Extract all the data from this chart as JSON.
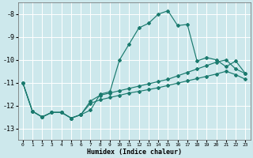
{
  "xlabel": "Humidex (Indice chaleur)",
  "bg_color": "#cde8ec",
  "grid_color": "#ffffff",
  "line_color": "#1a7a6e",
  "xlim": [
    -0.5,
    23.5
  ],
  "ylim": [
    -13.5,
    -7.5
  ],
  "yticks": [
    -13,
    -12,
    -11,
    -10,
    -9,
    -8
  ],
  "xticks": [
    0,
    1,
    2,
    3,
    4,
    5,
    6,
    7,
    8,
    9,
    10,
    11,
    12,
    13,
    14,
    15,
    16,
    17,
    18,
    19,
    20,
    21,
    22,
    23
  ],
  "line1_y": [
    -11.0,
    -12.25,
    -12.5,
    -12.3,
    -12.3,
    -12.55,
    -12.4,
    -12.2,
    -11.5,
    -11.4,
    -10.0,
    -9.3,
    -8.6,
    -8.4,
    -8.0,
    -7.85,
    -8.5,
    -8.45,
    -10.05,
    -9.9,
    -10.0,
    -10.3,
    -10.05,
    -10.6
  ],
  "line2_y": [
    -11.0,
    -12.25,
    -12.5,
    -12.3,
    -12.3,
    -12.55,
    -12.4,
    -11.8,
    -11.55,
    -11.45,
    -11.35,
    -11.25,
    -11.15,
    -11.05,
    -10.95,
    -10.85,
    -10.7,
    -10.55,
    -10.4,
    -10.25,
    -10.1,
    -10.0,
    -10.4,
    -10.6
  ],
  "line3_y": [
    -11.0,
    -12.25,
    -12.5,
    -12.3,
    -12.3,
    -12.55,
    -12.4,
    -11.9,
    -11.75,
    -11.65,
    -11.55,
    -11.45,
    -11.38,
    -11.3,
    -11.22,
    -11.12,
    -11.02,
    -10.92,
    -10.82,
    -10.72,
    -10.62,
    -10.5,
    -10.65,
    -10.85
  ]
}
